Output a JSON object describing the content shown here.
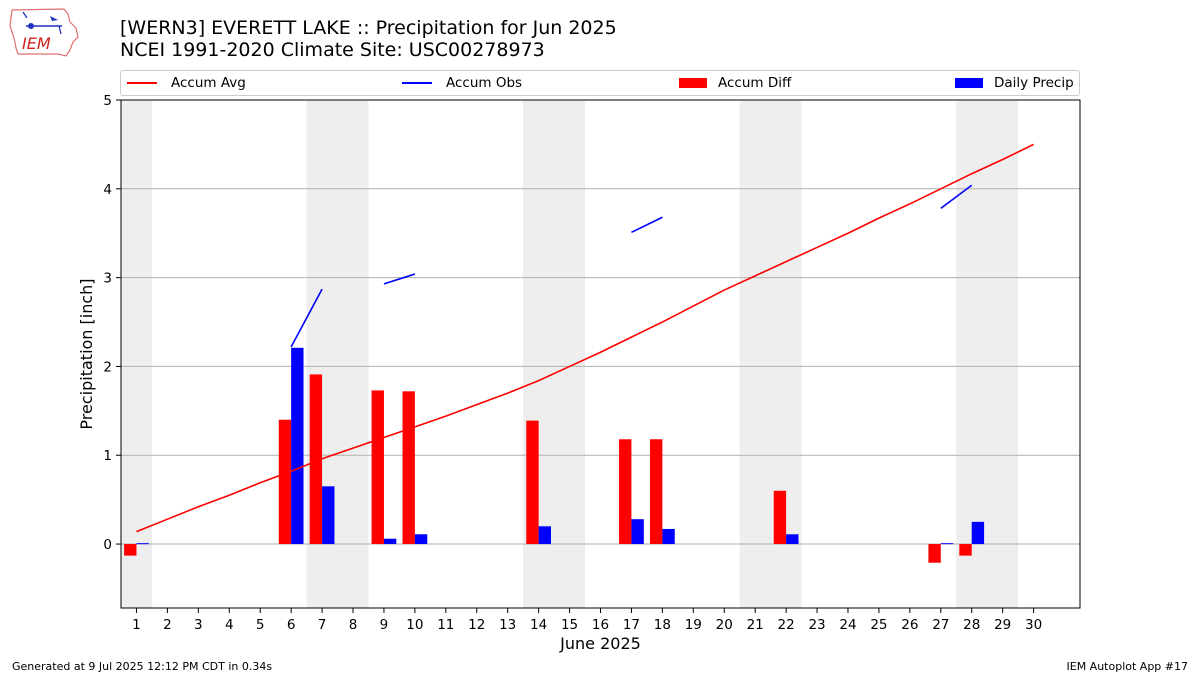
{
  "logo": {
    "text": "IEM"
  },
  "title": "[WERN3] EVERETT LAKE :: Precipitation for Jun 2025",
  "subtitle": "NCEI 1991-2020 Climate Site: USC00278973",
  "legend": [
    {
      "label": "Accum Avg",
      "kind": "line",
      "color": "#ff0000"
    },
    {
      "label": "Accum Obs",
      "kind": "line",
      "color": "#0000ff"
    },
    {
      "label": "Accum Diff",
      "kind": "bar",
      "color": "#ff0000"
    },
    {
      "label": "Daily Precip",
      "kind": "bar",
      "color": "#0000ff"
    }
  ],
  "footer": {
    "left": "Generated at 9 Jul 2025 12:12 PM CDT in 0.34s",
    "right": "IEM Autoplot App #17"
  },
  "chart_data": {
    "type": "bar",
    "xlabel": "June 2025",
    "ylabel": "Precipitation [inch]",
    "xlim": [
      0.5,
      31.5
    ],
    "ylim": [
      -0.72,
      5
    ],
    "yticks": [
      0,
      1,
      2,
      3,
      4,
      5
    ],
    "days": [
      1,
      2,
      3,
      4,
      5,
      6,
      7,
      8,
      9,
      10,
      11,
      12,
      13,
      14,
      15,
      16,
      17,
      18,
      19,
      20,
      21,
      22,
      23,
      24,
      25,
      26,
      27,
      28,
      29,
      30
    ],
    "weekend_shading": [
      [
        0.5,
        1.5
      ],
      [
        6.5,
        8.5
      ],
      [
        13.5,
        15.5
      ],
      [
        20.5,
        22.5
      ],
      [
        27.5,
        29.5
      ]
    ],
    "grid": "horizontal",
    "legend_position": "top",
    "colors": {
      "avg": "#ff0000",
      "obs": "#0000ff",
      "diff": "#ff0000",
      "daily": "#0000ff",
      "shade": "#eeeeee",
      "grid": "#b0b0b0"
    },
    "series": [
      {
        "name": "Accum Avg",
        "type": "line",
        "values": [
          0.14,
          0.28,
          0.42,
          0.55,
          0.69,
          0.82,
          0.96,
          1.08,
          1.2,
          1.32,
          1.44,
          1.57,
          1.7,
          1.84,
          2.0,
          2.16,
          2.33,
          2.5,
          2.68,
          2.86,
          3.02,
          3.18,
          3.34,
          3.5,
          3.67,
          3.83,
          4.0,
          4.17,
          4.33,
          4.5
        ]
      },
      {
        "name": "Accum Obs",
        "type": "line-segments",
        "segments": [
          [
            [
              6,
              2.22
            ],
            [
              7,
              2.87
            ]
          ],
          [
            [
              9,
              2.93
            ],
            [
              10,
              3.04
            ]
          ],
          [
            [
              17,
              3.51
            ],
            [
              18,
              3.68
            ]
          ],
          [
            [
              27,
              3.78
            ],
            [
              28,
              4.04
            ]
          ]
        ]
      },
      {
        "name": "Accum Diff",
        "type": "bar",
        "values": [
          -0.13,
          0,
          0,
          0,
          0,
          1.4,
          1.91,
          0,
          1.73,
          1.72,
          0,
          0,
          0,
          1.39,
          0,
          0,
          1.18,
          1.18,
          0,
          0,
          0,
          0.6,
          0,
          0,
          0,
          0,
          -0.21,
          -0.13,
          0,
          0
        ]
      },
      {
        "name": "Daily Precip",
        "type": "bar",
        "values": [
          0.01,
          0,
          0,
          0,
          0,
          2.21,
          0.65,
          0,
          0.06,
          0.11,
          0,
          0,
          0,
          0.2,
          0,
          0,
          0.28,
          0.17,
          0,
          0,
          0,
          0.11,
          0,
          0,
          0,
          0,
          0.01,
          0.25,
          0,
          0
        ]
      }
    ]
  }
}
